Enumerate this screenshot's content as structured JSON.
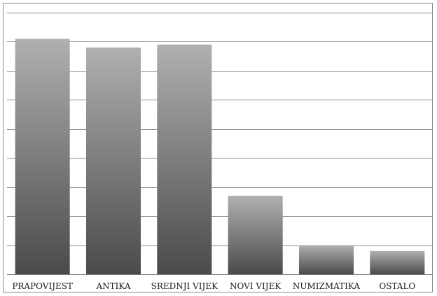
{
  "chart_data": {
    "type": "bar",
    "title": "",
    "xlabel": "",
    "ylabel": "",
    "categories": [
      "PRAPOVIJEST",
      "ANTIKA",
      "SREDNJI VIJEK",
      "NOVI VIJEK",
      "NUMIZMATIKA",
      "OSTALO"
    ],
    "values": [
      8.1,
      7.8,
      7.9,
      2.7,
      1.0,
      0.8
    ],
    "ylim": [
      0,
      9
    ],
    "y_gridlines": [
      1,
      2,
      3,
      4,
      5,
      6,
      7,
      8,
      9
    ],
    "y_tick_labels_shown": false,
    "grid": true,
    "legend": "none",
    "colors": {
      "bar_top": "#b0b0b2",
      "bar_bottom": "#4a4a4c",
      "gridline": "#8c8c8c",
      "axis": "#7a7a7a",
      "frame": "#8a8a8a",
      "label": "#1a1a1a"
    }
  }
}
